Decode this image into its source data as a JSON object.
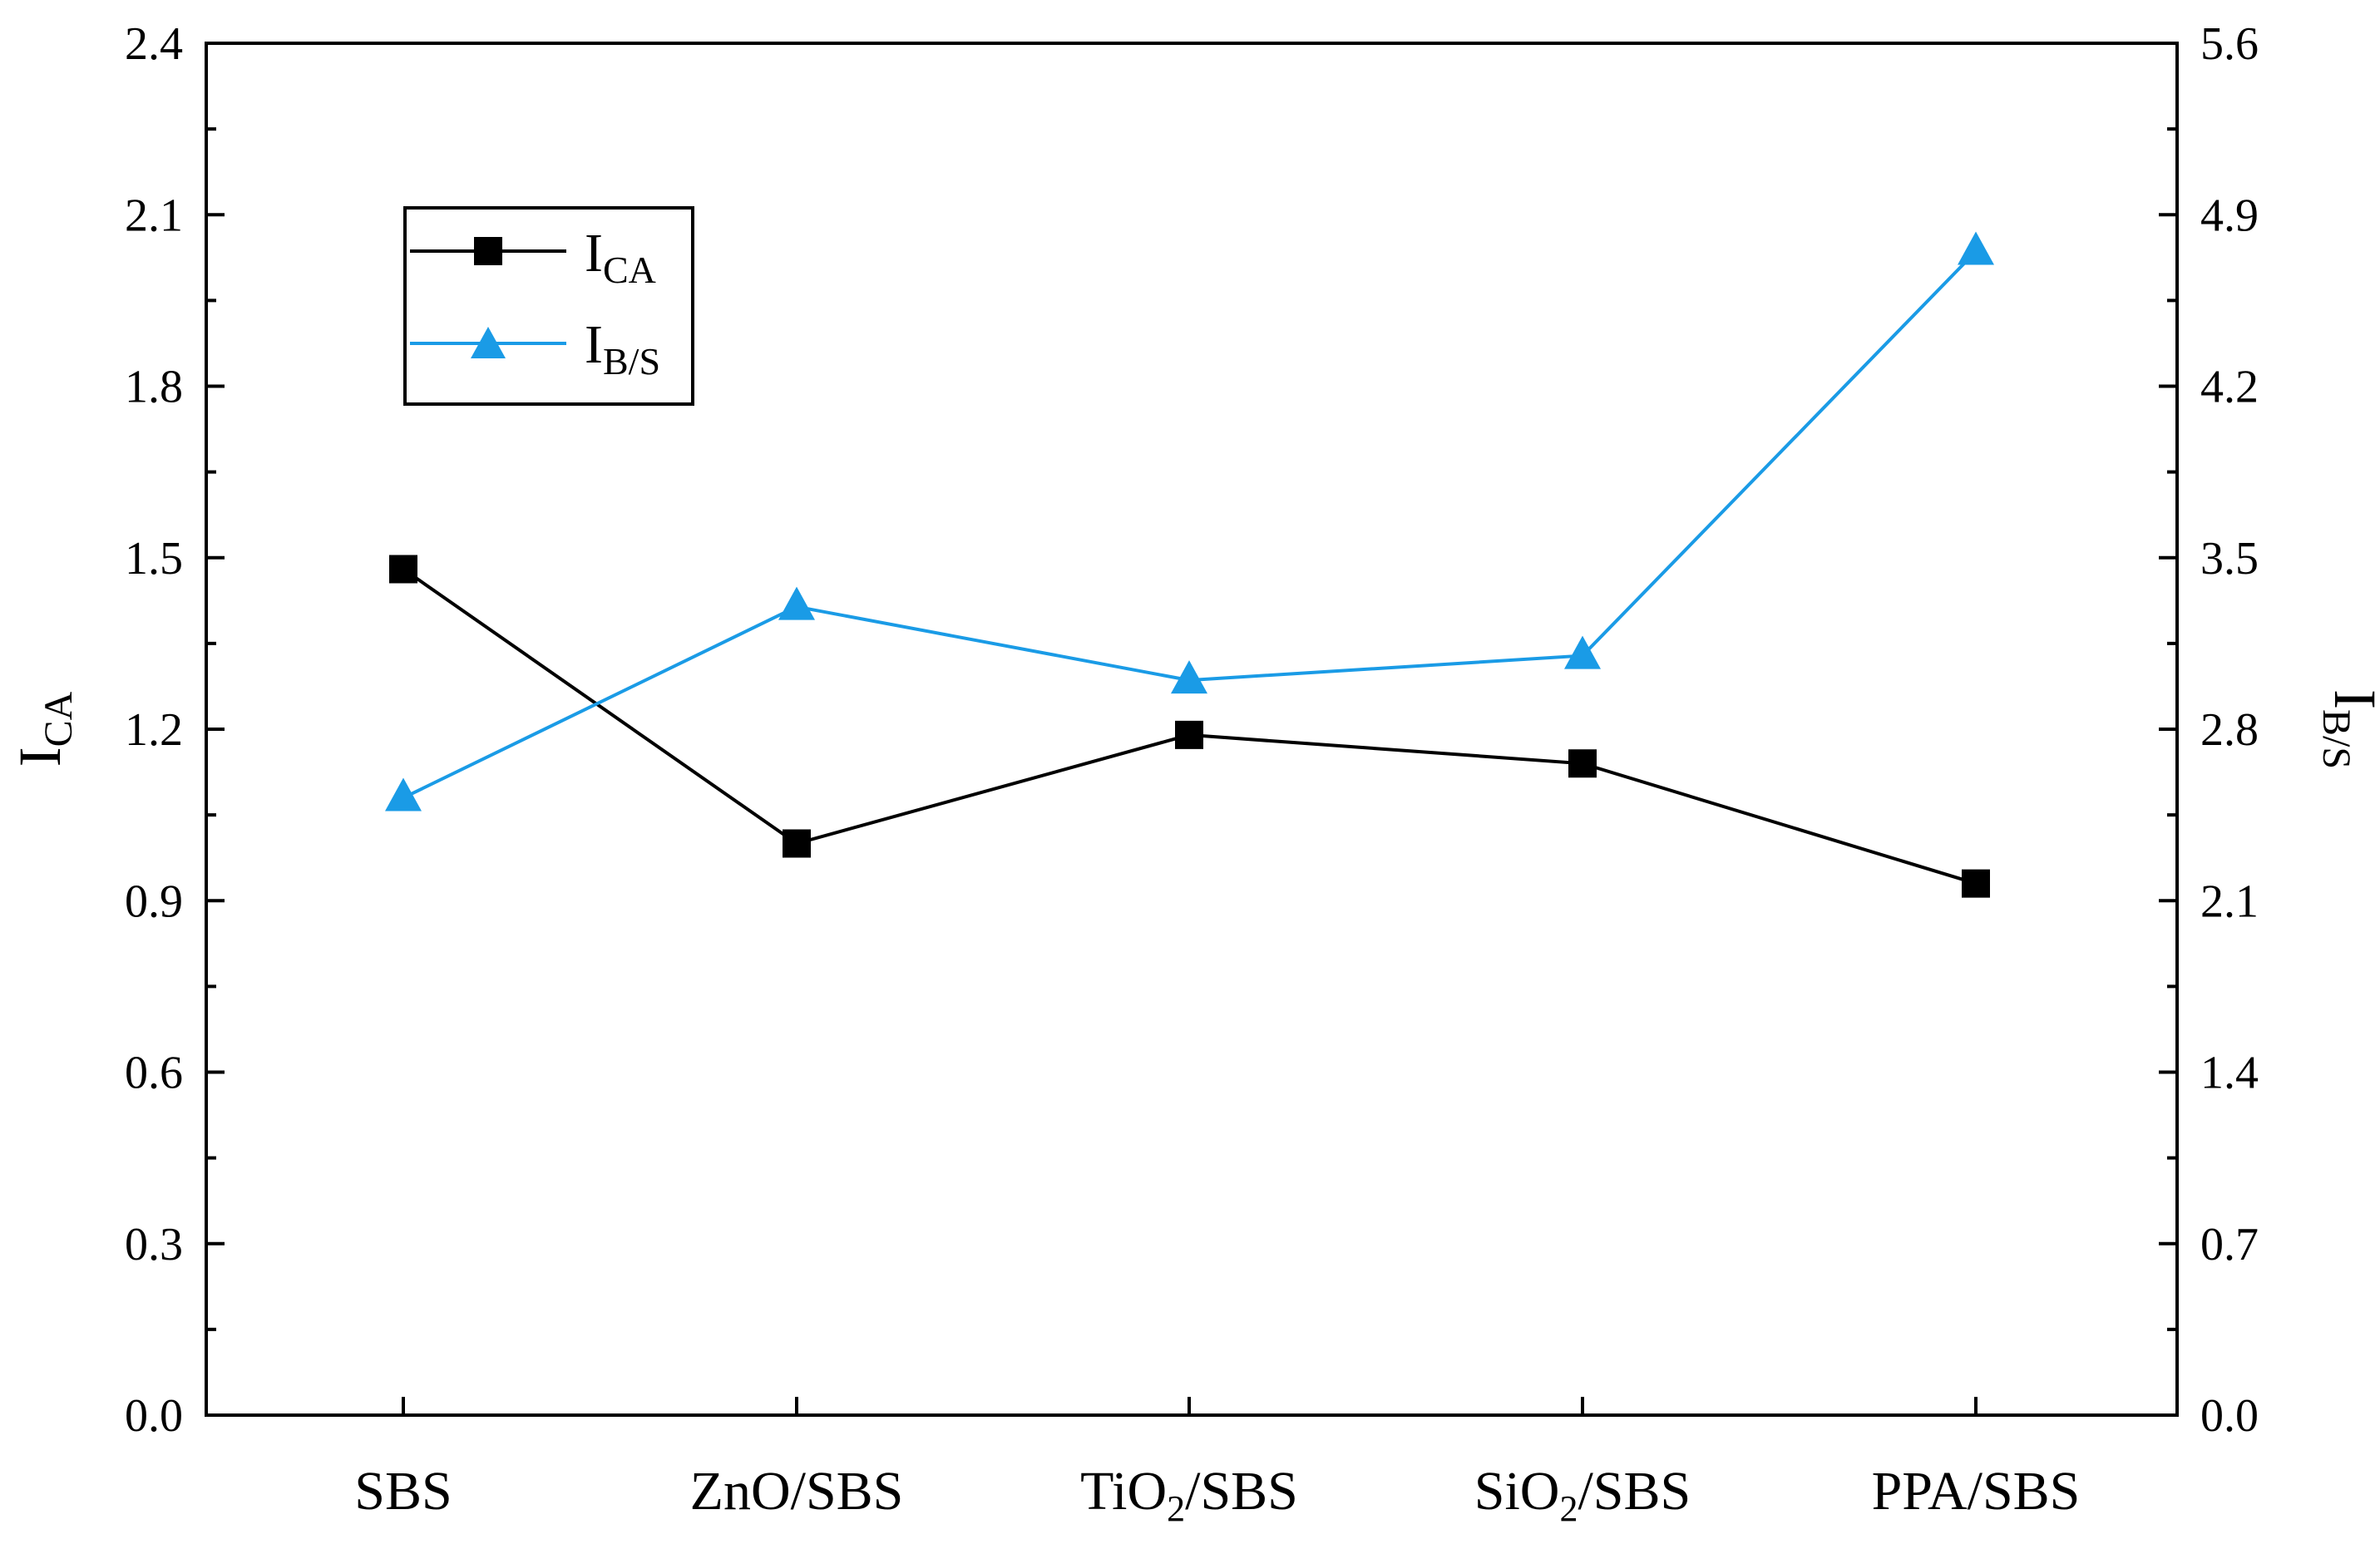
{
  "chart_data": {
    "type": "line",
    "categories": [
      "SBS",
      "ZnO/SBS",
      "TiO2/SBS",
      "SiO2/SBS",
      "PPA/SBS"
    ],
    "category_labels": [
      {
        "main": "SBS",
        "sub": "",
        "tail": ""
      },
      {
        "main": "ZnO/SBS",
        "sub": "",
        "tail": ""
      },
      {
        "main": "TiO",
        "sub": "2",
        "tail": "/SBS"
      },
      {
        "main": "SiO",
        "sub": "2",
        "tail": "/SBS"
      },
      {
        "main": "PPA/SBS",
        "sub": "",
        "tail": ""
      }
    ],
    "series": [
      {
        "name": "ICA",
        "name_main": "I",
        "name_sub": "CA",
        "axis": "left",
        "marker": "square",
        "color": "#000000",
        "values": [
          1.48,
          1.0,
          1.19,
          1.14,
          0.93
        ]
      },
      {
        "name": "IB/S",
        "name_main": "I",
        "name_sub": "B/S",
        "axis": "right",
        "marker": "triangle",
        "color": "#1a9be6",
        "values": [
          2.52,
          3.3,
          3.0,
          3.1,
          4.75
        ]
      }
    ],
    "left_axis": {
      "label_main": "I",
      "label_sub": "CA",
      "ylim": [
        0,
        2.4
      ],
      "ticks": [
        "0.0",
        "0.3",
        "0.6",
        "0.9",
        "1.2",
        "1.5",
        "1.8",
        "2.1",
        "2.4"
      ]
    },
    "right_axis": {
      "label_main": "I",
      "label_sub": "B/S",
      "ylim": [
        0,
        5.6
      ],
      "ticks": [
        "0.0",
        "0.7",
        "1.4",
        "2.1",
        "2.8",
        "3.5",
        "4.2",
        "4.9",
        "5.6"
      ]
    },
    "legend_position": "upper-left",
    "grid": false
  }
}
